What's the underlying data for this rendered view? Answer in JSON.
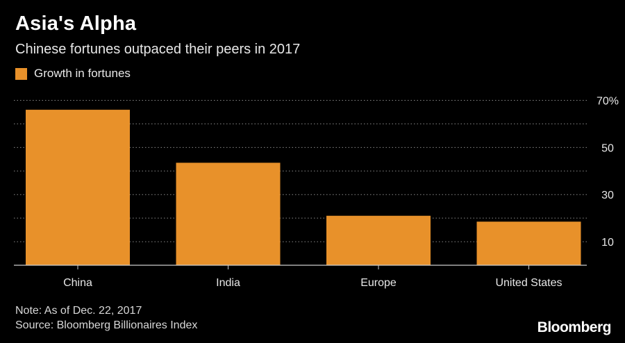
{
  "header": {
    "title": "Asia's Alpha",
    "subtitle": "Chinese fortunes outpaced their peers in 2017"
  },
  "legend": {
    "label": "Growth in fortunes"
  },
  "footer": {
    "note": "Note: As of Dec. 22, 2017",
    "source": "Source: Bloomberg Billionaires Index",
    "brand": "Bloomberg"
  },
  "colors": {
    "bar": "#e8912a",
    "background": "#000000",
    "grid": "#8a8a8a",
    "text": "#ffffff"
  },
  "chart_data": {
    "type": "bar",
    "categories": [
      "China",
      "India",
      "Europe",
      "United States"
    ],
    "series": [
      {
        "name": "Growth in fortunes",
        "values": [
          66,
          43.5,
          21,
          18.5
        ]
      }
    ],
    "ylim": [
      0,
      70
    ],
    "yticks": [
      10,
      30,
      50,
      70
    ],
    "ytick_labels": [
      "10",
      "30",
      "50",
      "70%"
    ],
    "gridlines": [
      10,
      20,
      30,
      40,
      50,
      60,
      70
    ],
    "grid": true,
    "legend_position": "top-left"
  }
}
